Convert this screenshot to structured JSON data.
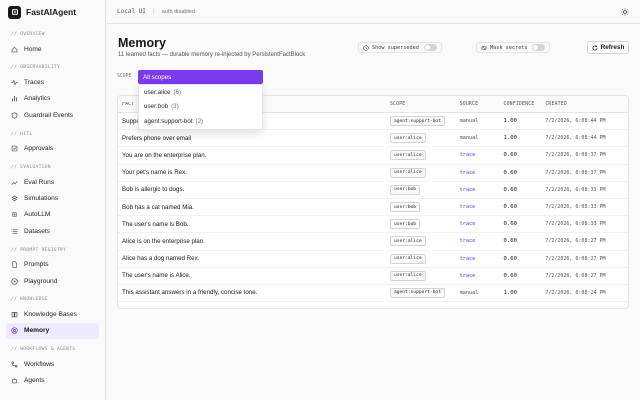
{
  "app": {
    "name": "FastAIAgent",
    "logo_letter": "⌂"
  },
  "topbar": {
    "env": "Local UI",
    "separator": "|",
    "auth": "auth disabled",
    "theme_icon": "sun-icon"
  },
  "sidebar": {
    "sections": [
      {
        "label": "// OVERVIEW",
        "items": [
          {
            "label": "Home",
            "icon": "home-icon"
          }
        ]
      },
      {
        "label": "// OBSERVABILITY",
        "items": [
          {
            "label": "Traces",
            "icon": "activity-icon"
          },
          {
            "label": "Analytics",
            "icon": "bar-chart-icon"
          },
          {
            "label": "Guardrail Events",
            "icon": "shield-icon"
          }
        ]
      },
      {
        "label": "// HITL",
        "items": [
          {
            "label": "Approvals",
            "icon": "check-square-icon"
          }
        ]
      },
      {
        "label": "// EVALUATION",
        "items": [
          {
            "label": "Eval Runs",
            "icon": "trending-icon"
          },
          {
            "label": "Simulations",
            "icon": "layers-icon"
          },
          {
            "label": "AutoLLM",
            "icon": "cpu-icon"
          },
          {
            "label": "Datasets",
            "icon": "list-icon"
          }
        ]
      },
      {
        "label": "// PROMPT REGISTRY",
        "items": [
          {
            "label": "Prompts",
            "icon": "file-icon"
          },
          {
            "label": "Playground",
            "icon": "play-icon"
          }
        ]
      },
      {
        "label": "// KNOWLEDGE",
        "items": [
          {
            "label": "Knowledge Bases",
            "icon": "book-icon"
          },
          {
            "label": "Memory",
            "icon": "memory-icon",
            "active": true
          }
        ]
      },
      {
        "label": "// WORKFLOWS & AGENTS",
        "items": [
          {
            "label": "Workflows",
            "icon": "workflow-icon"
          },
          {
            "label": "Agents",
            "icon": "bot-icon"
          }
        ]
      }
    ]
  },
  "page": {
    "title": "Memory",
    "subtitle": "11 learned facts — durable memory re-injected by PersistentFactBlock",
    "show_superseded": {
      "label": "Show superseded",
      "on": false,
      "icon": "clock-icon"
    },
    "mask_secrets": {
      "label": "Mask secrets",
      "on": false,
      "icon": "eye-off-icon"
    },
    "refresh_label": "Refresh"
  },
  "scope": {
    "label": "SCOPE",
    "selected": "All scopes",
    "options": [
      {
        "label": "user:alice",
        "count": "(6)"
      },
      {
        "label": "user:bob",
        "count": "(3)"
      },
      {
        "label": "agent:support-bot",
        "count": "(2)"
      }
    ]
  },
  "table": {
    "headers": {
      "fact": "FACT",
      "scope": "SCOPE",
      "source": "SOURCE",
      "confidence": "CONFIDENCE",
      "created": "CREATED"
    },
    "rows": [
      {
        "fact": "Support hours are 9am–5pm PT, Monday to Friday.",
        "scope": "agent:support-bot",
        "source": "manual",
        "confidence": "1.00",
        "created": "7/2/2026, 6:08:44 PM"
      },
      {
        "fact": "Prefers phone over email",
        "scope": "user:alice",
        "source": "manual",
        "confidence": "1.00",
        "created": "7/2/2026, 6:08:44 PM"
      },
      {
        "fact": "You are on the enterprise plan.",
        "scope": "user:alice",
        "source": "trace",
        "confidence": "0.60",
        "created": "7/2/2026, 6:08:37 PM"
      },
      {
        "fact": "Your pet's name is Rex.",
        "scope": "user:alice",
        "source": "trace",
        "confidence": "0.60",
        "created": "7/2/2026, 6:08:37 PM"
      },
      {
        "fact": "Bob is allergic to dogs.",
        "scope": "user:bob",
        "source": "trace",
        "confidence": "0.60",
        "created": "7/2/2026, 6:08:33 PM"
      },
      {
        "fact": "Bob has a cat named Mia.",
        "scope": "user:bob",
        "source": "trace",
        "confidence": "0.60",
        "created": "7/2/2026, 6:08:33 PM"
      },
      {
        "fact": "The user's name is Bob.",
        "scope": "user:bob",
        "source": "trace",
        "confidence": "0.60",
        "created": "7/2/2026, 6:08:33 PM"
      },
      {
        "fact": "Alice is on the enterprise plan.",
        "scope": "user:alice",
        "source": "trace",
        "confidence": "0.60",
        "created": "7/2/2026, 6:08:27 PM"
      },
      {
        "fact": "Alice has a dog named Rex.",
        "scope": "user:alice",
        "source": "trace",
        "confidence": "0.60",
        "created": "7/2/2026, 6:08:27 PM"
      },
      {
        "fact": "The user's name is Alice.",
        "scope": "user:alice",
        "source": "trace",
        "confidence": "0.60",
        "created": "7/2/2026, 6:08:27 PM"
      },
      {
        "fact": "This assistant answers in a friendly, concise tone.",
        "scope": "agent:support-bot",
        "source": "manual",
        "confidence": "1.00",
        "created": "7/2/2026, 6:08:24 PM"
      }
    ]
  },
  "colors": {
    "accent": "#7c3aed",
    "active_bg": "#ede9fe",
    "trace": "#4f46e5"
  }
}
